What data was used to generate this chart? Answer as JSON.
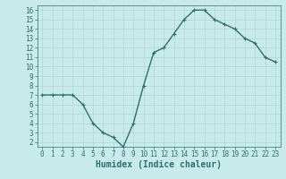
{
  "x": [
    0,
    1,
    2,
    3,
    4,
    5,
    6,
    7,
    8,
    9,
    10,
    11,
    12,
    13,
    14,
    15,
    16,
    17,
    18,
    19,
    20,
    21,
    22,
    23
  ],
  "y": [
    7,
    7,
    7,
    7,
    6,
    4,
    3,
    2.5,
    1.5,
    4,
    8,
    11.5,
    12,
    13.5,
    15,
    16,
    16,
    15,
    14.5,
    14,
    13,
    12.5,
    11,
    10.5
  ],
  "line_color": "#2e6e6e",
  "marker": "+",
  "marker_size": 3,
  "bg_color": "#c8eaea",
  "grid_color": "#b0d4d4",
  "xlabel": "Humidex (Indice chaleur)",
  "xlabel_fontsize": 7,
  "ylim": [
    1.5,
    16.5
  ],
  "xlim": [
    -0.5,
    23.5
  ],
  "yticks": [
    2,
    3,
    4,
    5,
    6,
    7,
    8,
    9,
    10,
    11,
    12,
    13,
    14,
    15,
    16
  ],
  "xticks": [
    0,
    1,
    2,
    3,
    4,
    5,
    6,
    7,
    8,
    9,
    10,
    11,
    12,
    13,
    14,
    15,
    16,
    17,
    18,
    19,
    20,
    21,
    22,
    23
  ],
  "tick_fontsize": 5.5,
  "line_width": 1.0
}
